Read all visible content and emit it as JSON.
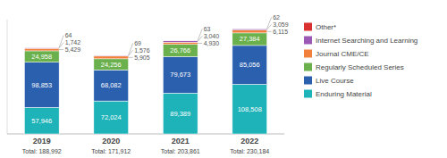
{
  "chart_data": {
    "type": "bar",
    "stacked": true,
    "orientation": "vertical",
    "categories": [
      "2019",
      "2020",
      "2021",
      "2022"
    ],
    "series": [
      {
        "name": "Enduring Material",
        "color": "#1db3b8",
        "values": [
          57946,
          72024,
          89389,
          108508
        ],
        "value_labels": [
          "57,946",
          "72,024",
          "89,389",
          "108,508"
        ]
      },
      {
        "name": "Live Course",
        "color": "#2b60ae",
        "values": [
          98853,
          68082,
          79673,
          85056
        ],
        "value_labels": [
          "98,853",
          "68,082",
          "79,673",
          "85,056"
        ]
      },
      {
        "name": "Regularly Scheduled Series",
        "color": "#6ab04c",
        "values": [
          24958,
          24256,
          26766,
          27384
        ],
        "value_labels": [
          "24,958",
          "24,256",
          "26,766",
          "27,384"
        ]
      },
      {
        "name": "Journal CME/CE",
        "color": "#f0803c",
        "values": [
          5429,
          5905,
          4930,
          6115
        ],
        "value_labels": [
          "5,429",
          "5,905",
          "4,930",
          "6,115"
        ]
      },
      {
        "name": "Internet Searching and Learning",
        "color": "#9b59b6",
        "values": [
          1742,
          1576,
          3040,
          3059
        ],
        "value_labels": [
          "1,742",
          "1,576",
          "3,040",
          "3,059"
        ]
      },
      {
        "name": "Other*",
        "color": "#d93030",
        "values": [
          64,
          69,
          63,
          62
        ],
        "value_labels": [
          "64",
          "69",
          "63",
          "62"
        ]
      }
    ],
    "annotations": [
      {
        "text": "Total: 188,992",
        "x": "2019"
      },
      {
        "text": "Total: 171,912",
        "x": "2020"
      },
      {
        "text": "Total: 203,861",
        "x": "2021"
      },
      {
        "text": "Total: 230,184",
        "x": "2022"
      }
    ],
    "ylim": [
      0,
      250000
    ],
    "data_labels": true,
    "tick_labels": "x",
    "grid": false,
    "legend": "right"
  }
}
